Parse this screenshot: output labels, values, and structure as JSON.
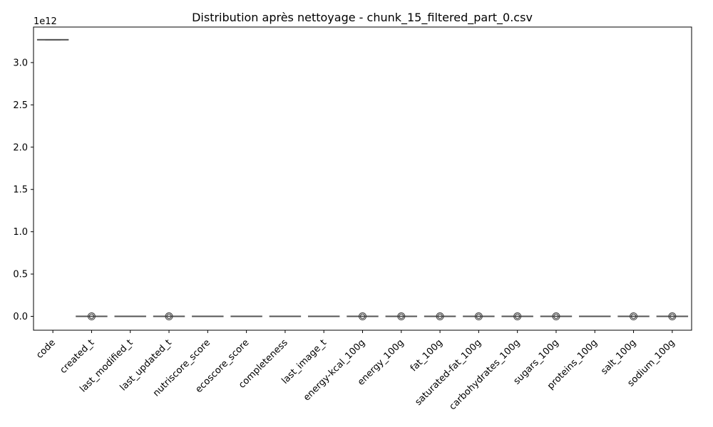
{
  "chart_data": {
    "type": "box",
    "title": "Distribution après nettoyage - chunk_15_filtered_part_0.csv",
    "xlabel": "",
    "ylabel": "",
    "y_scale_label": "1e12",
    "y_scale": 1000000000000.0,
    "ylim": [
      -0.164,
      3.42
    ],
    "y_ticks": [
      0.0,
      0.5,
      1.0,
      1.5,
      2.0,
      2.5,
      3.0
    ],
    "y_tick_labels": [
      "0.0",
      "0.5",
      "1.0",
      "1.5",
      "2.0",
      "2.5",
      "3.0"
    ],
    "box_color": "#4878a8",
    "outlier_color": "#3a3a3a",
    "categories": [
      "code",
      "created_t",
      "last_modified_t",
      "last_updated_t",
      "nutriscore_score",
      "ecoscore_score",
      "completeness",
      "last_image_t",
      "energy-kcal_100g",
      "energy_100g",
      "fat_100g",
      "saturated-fat_100g",
      "carbohydrates_100g",
      "sugars_100g",
      "proteins_100g",
      "salt_100g",
      "sodium_100g"
    ],
    "boxes": [
      {
        "name": "code",
        "whisker_low": 3.265,
        "q1": 3.266,
        "median": 3.268,
        "q3": 3.27,
        "whisker_high": 3.272,
        "outliers": []
      },
      {
        "name": "created_t",
        "whisker_low": 0.0,
        "q1": 0.0,
        "median": 0.0,
        "q3": 0.0,
        "whisker_high": 0.0,
        "outliers": [
          0.0
        ]
      },
      {
        "name": "last_modified_t",
        "whisker_low": 0.0,
        "q1": 0.0,
        "median": 0.0,
        "q3": 0.0,
        "whisker_high": 0.0,
        "outliers": []
      },
      {
        "name": "last_updated_t",
        "whisker_low": 0.0,
        "q1": 0.0,
        "median": 0.0,
        "q3": 0.0,
        "whisker_high": 0.0,
        "outliers": [
          0.0
        ]
      },
      {
        "name": "nutriscore_score",
        "whisker_low": 0.0,
        "q1": 0.0,
        "median": 0.0,
        "q3": 0.0,
        "whisker_high": 0.0,
        "outliers": []
      },
      {
        "name": "ecoscore_score",
        "whisker_low": 0.0,
        "q1": 0.0,
        "median": 0.0,
        "q3": 0.0,
        "whisker_high": 0.0,
        "outliers": []
      },
      {
        "name": "completeness",
        "whisker_low": 0.0,
        "q1": 0.0,
        "median": 0.0,
        "q3": 0.0,
        "whisker_high": 0.0,
        "outliers": []
      },
      {
        "name": "last_image_t",
        "whisker_low": 0.0,
        "q1": 0.0,
        "median": 0.0,
        "q3": 0.0,
        "whisker_high": 0.0,
        "outliers": []
      },
      {
        "name": "energy-kcal_100g",
        "whisker_low": 0.0,
        "q1": 0.0,
        "median": 0.0,
        "q3": 0.0,
        "whisker_high": 0.0,
        "outliers": [
          0.0
        ]
      },
      {
        "name": "energy_100g",
        "whisker_low": 0.0,
        "q1": 0.0,
        "median": 0.0,
        "q3": 0.0,
        "whisker_high": 0.0,
        "outliers": [
          0.0
        ]
      },
      {
        "name": "fat_100g",
        "whisker_low": 0.0,
        "q1": 0.0,
        "median": 0.0,
        "q3": 0.0,
        "whisker_high": 0.0,
        "outliers": [
          0.0
        ]
      },
      {
        "name": "saturated-fat_100g",
        "whisker_low": 0.0,
        "q1": 0.0,
        "median": 0.0,
        "q3": 0.0,
        "whisker_high": 0.0,
        "outliers": [
          0.0
        ]
      },
      {
        "name": "carbohydrates_100g",
        "whisker_low": 0.0,
        "q1": 0.0,
        "median": 0.0,
        "q3": 0.0,
        "whisker_high": 0.0,
        "outliers": [
          0.0
        ]
      },
      {
        "name": "sugars_100g",
        "whisker_low": 0.0,
        "q1": 0.0,
        "median": 0.0,
        "q3": 0.0,
        "whisker_high": 0.0,
        "outliers": [
          0.0
        ]
      },
      {
        "name": "proteins_100g",
        "whisker_low": 0.0,
        "q1": 0.0,
        "median": 0.0,
        "q3": 0.0,
        "whisker_high": 0.0,
        "outliers": []
      },
      {
        "name": "salt_100g",
        "whisker_low": 0.0,
        "q1": 0.0,
        "median": 0.0,
        "q3": 0.0,
        "whisker_high": 0.0,
        "outliers": [
          0.0
        ]
      },
      {
        "name": "sodium_100g",
        "whisker_low": 0.0,
        "q1": 0.0,
        "median": 0.0,
        "q3": 0.0,
        "whisker_high": 0.0,
        "outliers": [
          0.0
        ]
      }
    ]
  }
}
